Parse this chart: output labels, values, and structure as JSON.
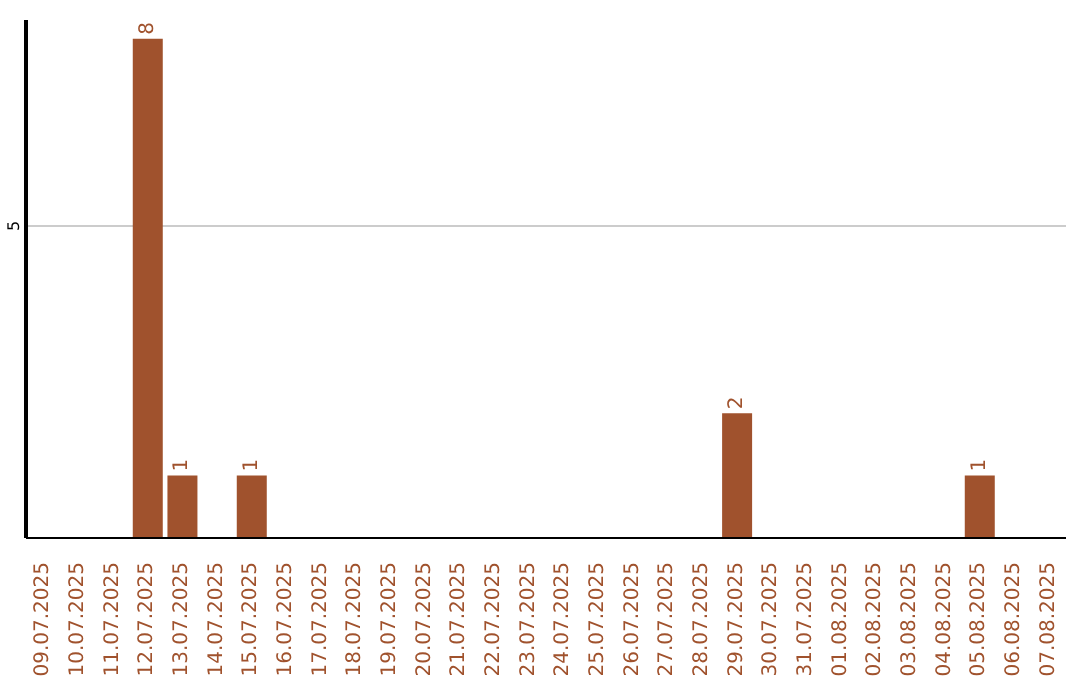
{
  "chart_data": {
    "type": "bar",
    "categories": [
      "09.07.2025",
      "10.07.2025",
      "11.07.2025",
      "12.07.2025",
      "13.07.2025",
      "14.07.2025",
      "15.07.2025",
      "16.07.2025",
      "17.07.2025",
      "18.07.2025",
      "19.07.2025",
      "20.07.2025",
      "21.07.2025",
      "22.07.2025",
      "23.07.2025",
      "24.07.2025",
      "25.07.2025",
      "26.07.2025",
      "27.07.2025",
      "28.07.2025",
      "29.07.2025",
      "30.07.2025",
      "31.07.2025",
      "01.08.2025",
      "02.08.2025",
      "03.08.2025",
      "04.08.2025",
      "05.08.2025",
      "06.08.2025",
      "07.08.2025"
    ],
    "values": [
      0,
      0,
      0,
      8,
      1,
      0,
      1,
      0,
      0,
      0,
      0,
      0,
      0,
      0,
      0,
      0,
      0,
      0,
      0,
      0,
      2,
      0,
      0,
      0,
      0,
      0,
      0,
      1,
      0,
      0
    ],
    "value_labels": [
      null,
      null,
      null,
      "8",
      "1",
      null,
      "1",
      null,
      null,
      null,
      null,
      null,
      null,
      null,
      null,
      null,
      null,
      null,
      null,
      null,
      "2",
      null,
      null,
      null,
      null,
      null,
      null,
      "1",
      null,
      null
    ],
    "color": "#a0522d",
    "ylim": [
      0,
      8.3
    ],
    "yticks": [
      5
    ],
    "grid": "y"
  }
}
